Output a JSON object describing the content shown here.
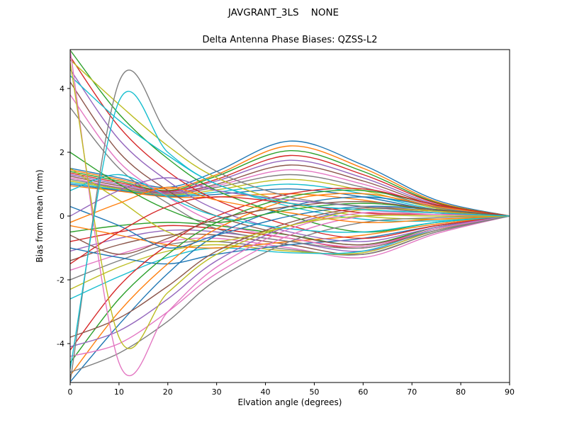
{
  "figure": {
    "suptitle": "JAVGRANT_3LS    NONE",
    "axes_title": "Delta Antenna Phase Biases: QZSS-L2",
    "xlabel": "Elvation angle (degrees)",
    "ylabel": "Bias from mean (mm)"
  },
  "chart_data": {
    "type": "line",
    "suptitle": "JAVGRANT_3LS    NONE",
    "title": "Delta Antenna Phase Biases: QZSS-L2",
    "xlabel": "Elvation angle (degrees)",
    "ylabel": "Bias from mean (mm)",
    "xlim": [
      0,
      90
    ],
    "ylim": [
      -5.22,
      5.22
    ],
    "x_ticks": [
      0,
      10,
      20,
      30,
      40,
      50,
      60,
      70,
      80,
      90
    ],
    "y_ticks": [
      -4,
      -2,
      0,
      2,
      4
    ],
    "grid": false,
    "legend": "none",
    "x": [
      0,
      10,
      20,
      30,
      45,
      60,
      75,
      90
    ],
    "series": [
      {
        "values": [
          1.5,
          1.2,
          0.9,
          1.4,
          2.35,
          1.6,
          0.5,
          0
        ]
      },
      {
        "values": [
          1.45,
          1.15,
          0.85,
          1.3,
          2.2,
          1.5,
          0.45,
          0
        ]
      },
      {
        "values": [
          1.4,
          1.1,
          0.8,
          1.25,
          2.05,
          1.4,
          0.42,
          0
        ]
      },
      {
        "values": [
          1.35,
          1.05,
          0.78,
          1.15,
          1.9,
          1.3,
          0.4,
          0
        ]
      },
      {
        "values": [
          1.3,
          1.0,
          0.75,
          1.1,
          1.75,
          1.2,
          0.36,
          0
        ]
      },
      {
        "values": [
          1.25,
          0.95,
          0.72,
          1.0,
          1.6,
          1.1,
          0.33,
          0
        ]
      },
      {
        "values": [
          1.2,
          0.9,
          0.7,
          0.95,
          1.45,
          1.0,
          0.3,
          0
        ]
      },
      {
        "values": [
          1.15,
          0.88,
          0.68,
          0.9,
          1.3,
          0.9,
          0.27,
          0
        ]
      },
      {
        "values": [
          1.1,
          0.85,
          0.66,
          0.82,
          1.15,
          0.8,
          0.24,
          0
        ]
      },
      {
        "values": [
          1.05,
          0.82,
          0.64,
          0.75,
          1.0,
          0.7,
          0.2,
          0
        ]
      },
      {
        "values": [
          1.0,
          0.8,
          0.62,
          0.68,
          0.85,
          0.6,
          0.18,
          0
        ]
      },
      {
        "values": [
          0.95,
          0.78,
          0.6,
          0.6,
          0.7,
          0.5,
          0.15,
          0
        ]
      },
      {
        "values": [
          -0.5,
          -0.3,
          -0.2,
          -0.3,
          -0.6,
          -0.9,
          -0.35,
          0
        ]
      },
      {
        "values": [
          -0.8,
          -0.5,
          -0.3,
          -0.4,
          -0.7,
          -1.0,
          -0.4,
          0
        ]
      },
      {
        "values": [
          -1.1,
          -0.7,
          -0.45,
          -0.5,
          -0.8,
          -1.1,
          -0.45,
          0
        ]
      },
      {
        "values": [
          -1.4,
          -0.9,
          -0.6,
          -0.6,
          -0.9,
          -1.2,
          -0.5,
          0
        ]
      },
      {
        "values": [
          -1.7,
          -1.2,
          -0.8,
          -0.7,
          -1.0,
          -1.3,
          -0.55,
          0
        ]
      },
      {
        "values": [
          -2.0,
          -1.4,
          -0.9,
          -0.8,
          -1.05,
          -1.2,
          -0.5,
          0
        ]
      },
      {
        "values": [
          -2.3,
          -1.6,
          -1.1,
          -0.9,
          -1.1,
          -1.15,
          -0.45,
          0
        ]
      },
      {
        "values": [
          -2.6,
          -1.9,
          -1.3,
          -1.0,
          -1.15,
          -1.1,
          -0.4,
          0
        ]
      },
      {
        "values": [
          -1.0,
          -1.3,
          -1.5,
          -1.2,
          -0.9,
          -0.7,
          -0.3,
          0
        ]
      },
      {
        "values": [
          -0.3,
          -0.6,
          -0.9,
          -1.0,
          -0.8,
          -0.6,
          -0.25,
          0
        ]
      },
      {
        "values": [
          5.2,
          3.2,
          1.8,
          0.8,
          0.0,
          -0.5,
          -0.2,
          0
        ]
      },
      {
        "values": [
          5.0,
          2.8,
          1.4,
          0.5,
          -0.3,
          -0.7,
          -0.3,
          0
        ]
      },
      {
        "values": [
          4.6,
          2.4,
          1.1,
          0.2,
          -0.5,
          -0.8,
          -0.35,
          0
        ]
      },
      {
        "values": [
          4.2,
          2.0,
          0.8,
          0.0,
          -0.6,
          -0.9,
          -0.4,
          0
        ]
      },
      {
        "values": [
          3.8,
          1.7,
          0.6,
          -0.2,
          -0.7,
          -0.95,
          -0.4,
          0
        ]
      },
      {
        "values": [
          3.4,
          1.5,
          0.4,
          -0.4,
          -0.8,
          -1.0,
          -0.45,
          0
        ]
      },
      {
        "values": [
          4.9,
          3.5,
          2.2,
          1.2,
          0.4,
          0.0,
          -0.1,
          0
        ]
      },
      {
        "values": [
          4.4,
          3.0,
          1.9,
          1.0,
          0.3,
          -0.1,
          -0.15,
          0
        ]
      },
      {
        "values": [
          -5.2,
          -3.4,
          -1.8,
          -0.6,
          0.3,
          0.6,
          0.3,
          0
        ]
      },
      {
        "values": [
          -5.0,
          -3.0,
          -1.5,
          -0.4,
          0.5,
          0.7,
          0.3,
          0
        ]
      },
      {
        "values": [
          -4.6,
          -2.6,
          -1.2,
          -0.2,
          0.6,
          0.8,
          0.35,
          0
        ]
      },
      {
        "values": [
          -4.2,
          -2.2,
          -0.9,
          0.0,
          0.7,
          0.85,
          0.35,
          0
        ]
      },
      {
        "values": [
          -4.1,
          -3.6,
          -2.6,
          -1.4,
          -0.3,
          0.2,
          0.15,
          0
        ]
      },
      {
        "values": [
          -3.8,
          -3.2,
          -2.2,
          -1.1,
          -0.2,
          0.25,
          0.15,
          0
        ]
      },
      {
        "values": [
          -4.4,
          -4.0,
          -3.0,
          -1.8,
          -0.6,
          0.0,
          0.05,
          0
        ]
      },
      {
        "values": [
          -4.9,
          -4.3,
          -3.3,
          -2.0,
          -0.8,
          -0.2,
          -0.05,
          0
        ]
      },
      {
        "values": [
          1.5,
          0.5,
          -0.5,
          -0.8,
          -0.3,
          0.2,
          0.15,
          0
        ]
      },
      {
        "values": [
          0.8,
          1.3,
          0.6,
          0.0,
          -0.4,
          -0.5,
          -0.2,
          0
        ]
      },
      {
        "values": [
          0.3,
          -0.3,
          -1.0,
          -0.6,
          0.0,
          0.3,
          0.2,
          0
        ]
      },
      {
        "values": [
          -0.2,
          0.4,
          0.9,
          0.5,
          0.1,
          -0.2,
          -0.1,
          0
        ]
      },
      {
        "values": [
          2.0,
          1.0,
          0.2,
          -0.2,
          0.2,
          0.4,
          0.2,
          0
        ]
      },
      {
        "values": [
          -1.5,
          -0.5,
          0.3,
          0.6,
          0.4,
          0.1,
          0.05,
          0
        ]
      },
      {
        "values": [
          0.0,
          0.8,
          1.2,
          0.8,
          0.5,
          0.3,
          0.1,
          0
        ]
      },
      {
        "values": [
          -0.6,
          -1.2,
          -0.7,
          -0.1,
          0.3,
          0.45,
          0.2,
          0
        ]
      },
      {
        "values": [
          5.2,
          -4.6,
          -3.0,
          -1.6,
          -0.4,
          0.1,
          0.05,
          0
        ]
      },
      {
        "values": [
          -5.2,
          4.2,
          2.6,
          1.4,
          0.6,
          0.3,
          0.1,
          0
        ]
      },
      {
        "values": [
          4.8,
          -3.8,
          -2.4,
          -1.2,
          -0.3,
          0.0,
          0.0,
          0
        ]
      },
      {
        "values": [
          -4.8,
          3.6,
          2.0,
          1.0,
          0.4,
          0.2,
          0.1,
          0
        ]
      }
    ],
    "colors": [
      "#1f77b4",
      "#ff7f0e",
      "#2ca02c",
      "#d62728",
      "#9467bd",
      "#8c564b",
      "#e377c2",
      "#7f7f7f",
      "#bcbd22",
      "#17becf"
    ],
    "axis_color": "#000000",
    "background_color": "#ffffff"
  }
}
